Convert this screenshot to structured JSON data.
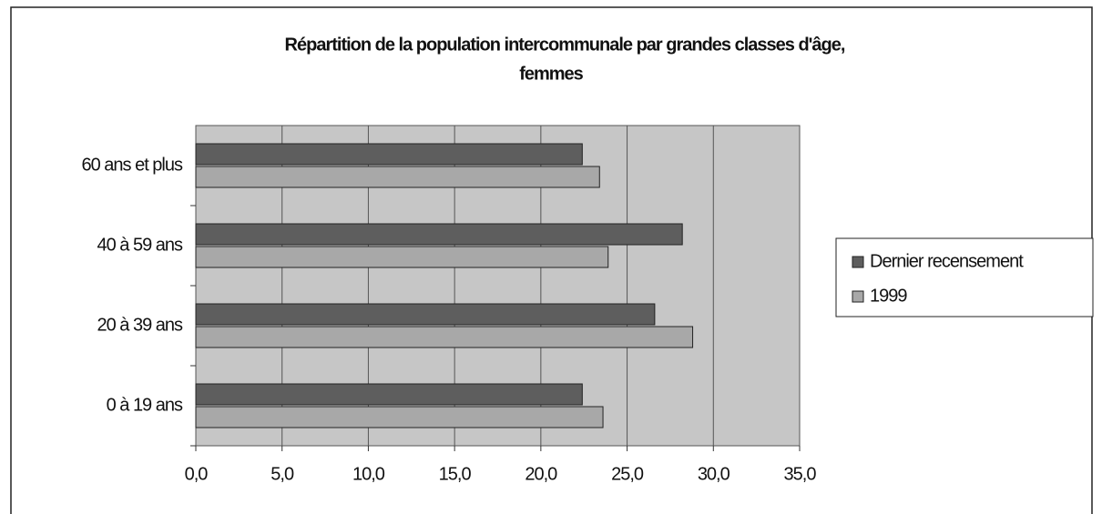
{
  "chart_data": {
    "type": "hbar",
    "title": "Répartition de la population intercommunale par grandes classes d'âge,",
    "subtitle": "femmes",
    "categories": [
      "0 à 19 ans",
      "20 à 39 ans",
      "40 à 59 ans",
      "60 ans et plus"
    ],
    "series": [
      {
        "name": "Dernier recensement",
        "color": "#5e5e5e",
        "values": [
          22.4,
          26.6,
          28.2,
          22.4
        ]
      },
      {
        "name": "1999",
        "color": "#a8a8a8",
        "values": [
          23.6,
          28.8,
          23.9,
          23.4
        ]
      }
    ],
    "xlim": [
      0,
      35
    ],
    "xticks": [
      {
        "value": 0,
        "label": "0,0"
      },
      {
        "value": 5,
        "label": "5,0"
      },
      {
        "value": 10,
        "label": "10,0"
      },
      {
        "value": 15,
        "label": "15,0"
      },
      {
        "value": 20,
        "label": "20,0"
      },
      {
        "value": 25,
        "label": "25,0"
      },
      {
        "value": 30,
        "label": "30,0"
      },
      {
        "value": 35,
        "label": "35,0"
      }
    ],
    "grid": true,
    "legend": "right"
  }
}
